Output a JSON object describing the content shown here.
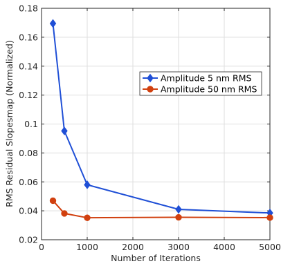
{
  "chart_data": {
    "type": "line",
    "xlabel": "Number of Iterations",
    "ylabel": "RMS Residual Slopesmap (Normalized)",
    "xlim": [
      0,
      5000
    ],
    "ylim": [
      0.02,
      0.18
    ],
    "xticks": [
      0,
      1000,
      2000,
      3000,
      4000,
      5000
    ],
    "xtick_labels": [
      "0",
      "1000",
      "2000",
      "3000",
      "4000",
      "5000"
    ],
    "yticks": [
      0.02,
      0.04,
      0.06,
      0.08,
      0.1,
      0.12,
      0.14,
      0.16,
      0.18
    ],
    "ytick_labels": [
      "0.02",
      "0.04",
      "0.06",
      "0.08",
      "0.1",
      "0.12",
      "0.14",
      "0.16",
      "0.18"
    ],
    "grid": true,
    "legend_position": "center-right",
    "series": [
      {
        "name": "Amplitude 5 nm RMS",
        "color": "#1f4fd6",
        "marker": "diamond",
        "x": [
          250,
          500,
          1000,
          3000,
          5000
        ],
        "y": [
          0.1695,
          0.0952,
          0.058,
          0.041,
          0.0385
        ]
      },
      {
        "name": "Amplitude 50 nm RMS",
        "color": "#d1400f",
        "marker": "circle",
        "x": [
          250,
          500,
          1000,
          3000,
          5000
        ],
        "y": [
          0.047,
          0.0382,
          0.0352,
          0.0355,
          0.0353
        ]
      }
    ]
  }
}
